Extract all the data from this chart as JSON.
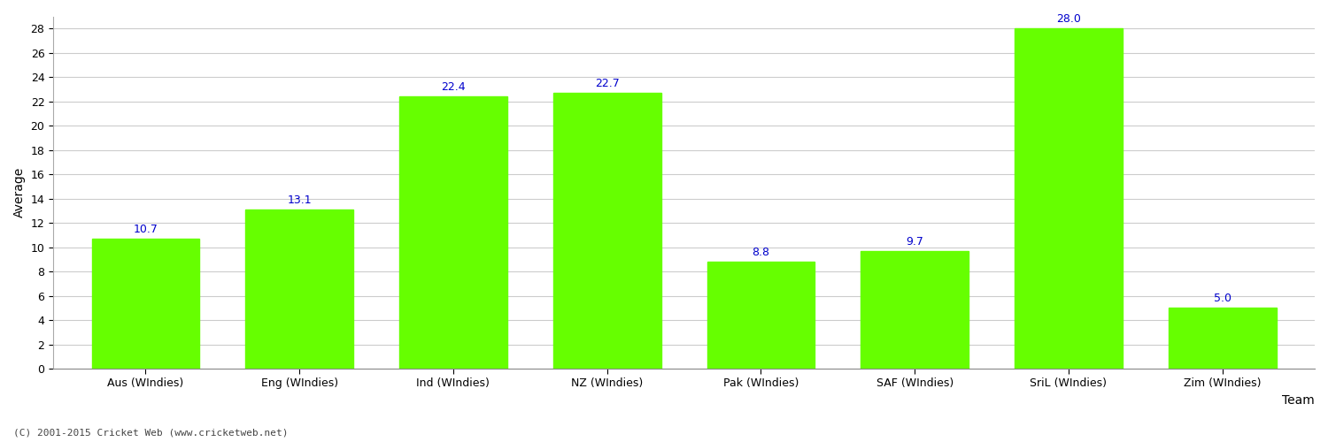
{
  "categories": [
    "Aus (WIndies)",
    "Eng (WIndies)",
    "Ind (WIndies)",
    "NZ (WIndies)",
    "Pak (WIndies)",
    "SAF (WIndies)",
    "SriL (WIndies)",
    "Zim (WIndies)"
  ],
  "values": [
    10.7,
    13.1,
    22.4,
    22.7,
    8.8,
    9.7,
    28.0,
    5.0
  ],
  "bar_color": "#66ff00",
  "bar_edge_color": "#66ff00",
  "xlabel": "Team",
  "ylabel": "Average",
  "ylim": [
    0,
    29
  ],
  "yticks": [
    0,
    2,
    4,
    6,
    8,
    10,
    12,
    14,
    16,
    18,
    20,
    22,
    24,
    26,
    28
  ],
  "label_color": "#0000cc",
  "label_fontsize": 9,
  "axis_label_fontsize": 10,
  "tick_fontsize": 9,
  "background_color": "#ffffff",
  "grid_color": "#cccccc",
  "footer": "(C) 2001-2015 Cricket Web (www.cricketweb.net)"
}
